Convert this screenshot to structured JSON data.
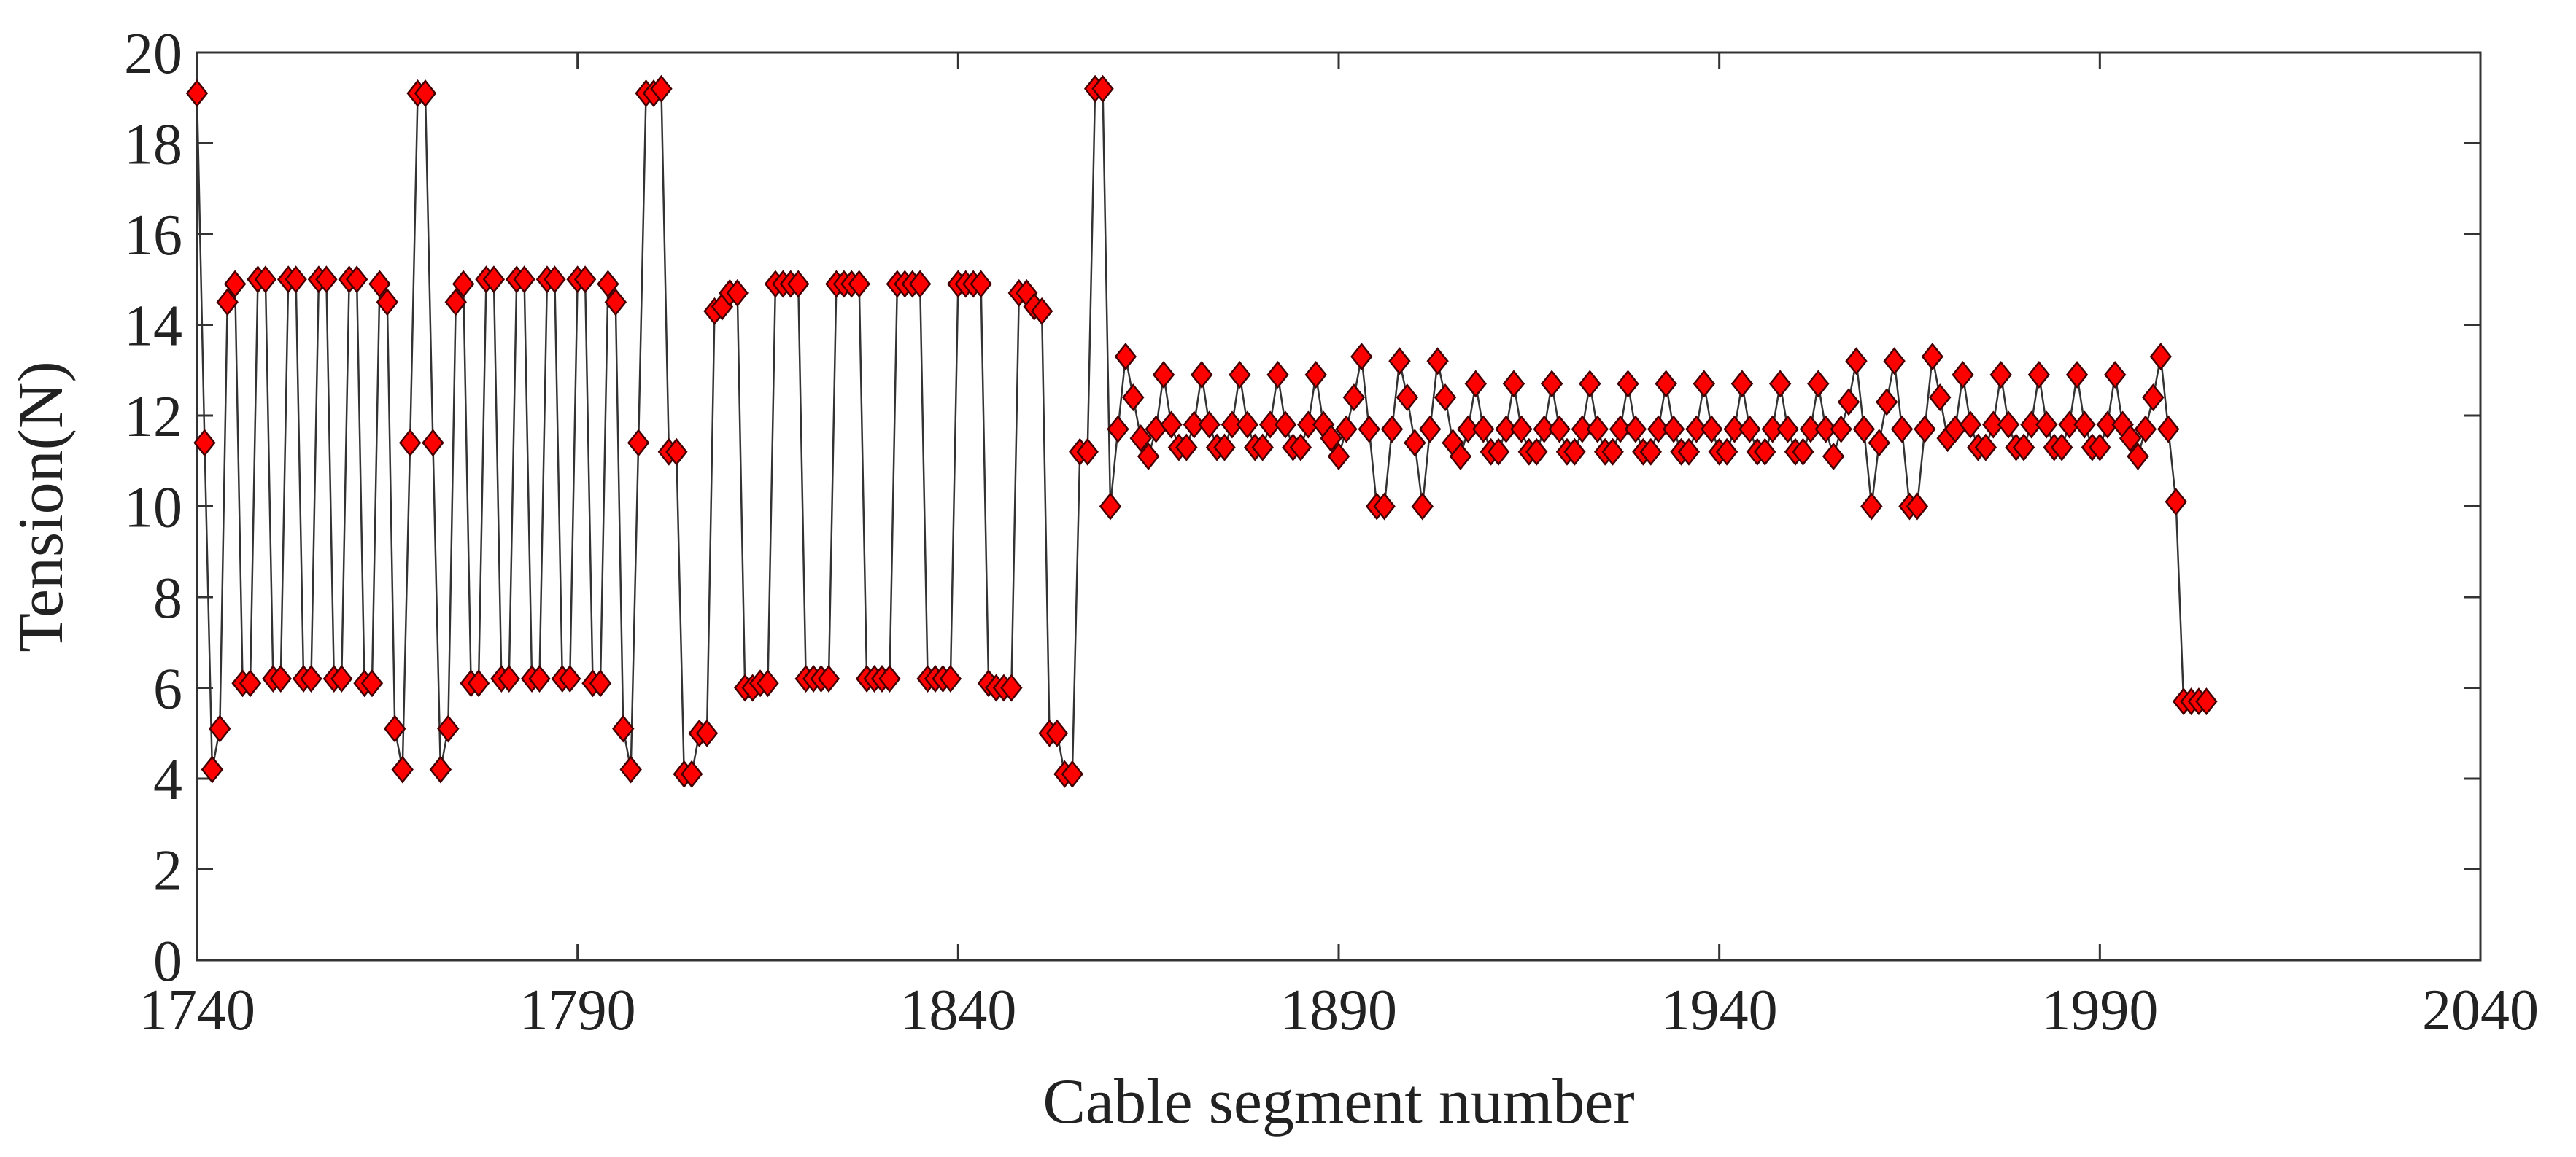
{
  "chart_data": {
    "type": "line",
    "x_label": "Cable segment number",
    "y_label": "Tension(N)",
    "xlim": [
      1740,
      2040
    ],
    "xticks": [
      1740,
      1790,
      1840,
      1890,
      1940,
      1990,
      2040
    ],
    "ylim": [
      0,
      20
    ],
    "yticks": [
      0,
      2,
      4,
      6,
      8,
      10,
      12,
      14,
      16,
      18,
      20
    ],
    "color": "#ff0000",
    "line_color": "#333333",
    "grid": false,
    "x": [
      1740,
      1741,
      1742,
      1743,
      1744,
      1745,
      1746,
      1747,
      1748,
      1749,
      1750,
      1751,
      1752,
      1753,
      1754,
      1755,
      1756,
      1757,
      1758,
      1759,
      1760,
      1761,
      1762,
      1763,
      1764,
      1765,
      1766,
      1767,
      1768,
      1769,
      1770,
      1771,
      1772,
      1773,
      1774,
      1775,
      1776,
      1777,
      1778,
      1779,
      1780,
      1781,
      1782,
      1783,
      1784,
      1785,
      1786,
      1787,
      1788,
      1789,
      1790,
      1791,
      1792,
      1793,
      1794,
      1795,
      1796,
      1797,
      1798,
      1799,
      1800,
      1801,
      1802,
      1803,
      1804,
      1805,
      1806,
      1807,
      1808,
      1809,
      1810,
      1811,
      1812,
      1813,
      1814,
      1815,
      1816,
      1817,
      1818,
      1819,
      1820,
      1821,
      1822,
      1823,
      1824,
      1825,
      1826,
      1827,
      1828,
      1829,
      1830,
      1831,
      1832,
      1833,
      1834,
      1835,
      1836,
      1837,
      1838,
      1839,
      1840,
      1841,
      1842,
      1843,
      1844,
      1845,
      1846,
      1847,
      1848,
      1849,
      1850,
      1851,
      1852,
      1853,
      1854,
      1855,
      1856,
      1857,
      1858,
      1859,
      1860,
      1861,
      1862,
      1863,
      1864,
      1865,
      1866,
      1867,
      1868,
      1869,
      1870,
      1871,
      1872,
      1873,
      1874,
      1875,
      1876,
      1877,
      1878,
      1879,
      1880,
      1881,
      1882,
      1883,
      1884,
      1885,
      1886,
      1887,
      1888,
      1889,
      1890,
      1891,
      1892,
      1893,
      1894,
      1895,
      1896,
      1897,
      1898,
      1899,
      1900,
      1901,
      1902,
      1903,
      1904,
      1905,
      1906,
      1907,
      1908,
      1909,
      1910,
      1911,
      1912,
      1913,
      1914,
      1915,
      1916,
      1917,
      1918,
      1919,
      1920,
      1921,
      1922,
      1923,
      1924,
      1925,
      1926,
      1927,
      1928,
      1929,
      1930,
      1931,
      1932,
      1933,
      1934,
      1935,
      1936,
      1937,
      1938,
      1939,
      1940,
      1941,
      1942,
      1943,
      1944,
      1945,
      1946,
      1947,
      1948,
      1949,
      1950,
      1951,
      1952,
      1953,
      1954,
      1955,
      1956,
      1957,
      1958,
      1959,
      1960,
      1961,
      1962,
      1963,
      1964,
      1965,
      1966,
      1967,
      1968,
      1969,
      1970,
      1971,
      1972,
      1973,
      1974,
      1975,
      1976,
      1977,
      1978,
      1979,
      1980,
      1981,
      1982,
      1983,
      1984,
      1985,
      1986,
      1987,
      1988,
      1989,
      1990,
      1991,
      1992,
      1993,
      1994,
      1995,
      1996,
      1997,
      1998,
      1999,
      2000,
      2001,
      2002,
      2003,
      2004
    ],
    "values": [
      19.1,
      11.4,
      4.2,
      5.1,
      14.5,
      14.9,
      6.1,
      6.1,
      15.0,
      15.0,
      6.2,
      6.2,
      15.0,
      15.0,
      6.2,
      6.2,
      15.0,
      15.0,
      6.2,
      6.2,
      15.0,
      15.0,
      6.1,
      6.1,
      14.9,
      14.5,
      5.1,
      4.2,
      11.4,
      19.1,
      19.1,
      11.4,
      4.2,
      5.1,
      14.5,
      14.9,
      6.1,
      6.1,
      15.0,
      15.0,
      6.2,
      6.2,
      15.0,
      15.0,
      6.2,
      6.2,
      15.0,
      15.0,
      6.2,
      6.2,
      15.0,
      15.0,
      6.1,
      6.1,
      14.9,
      14.5,
      5.1,
      4.2,
      11.4,
      19.1,
      19.1,
      19.2,
      11.2,
      11.2,
      4.1,
      4.1,
      5.0,
      5.0,
      14.3,
      14.4,
      14.7,
      14.7,
      6.0,
      6.0,
      6.1,
      6.1,
      14.9,
      14.9,
      14.9,
      14.9,
      6.2,
      6.2,
      6.2,
      6.2,
      14.9,
      14.9,
      14.9,
      14.9,
      6.2,
      6.2,
      6.2,
      6.2,
      14.9,
      14.9,
      14.9,
      14.9,
      6.2,
      6.2,
      6.2,
      6.2,
      14.9,
      14.9,
      14.9,
      14.9,
      6.1,
      6.0,
      6.0,
      6.0,
      14.7,
      14.7,
      14.4,
      14.3,
      5.0,
      5.0,
      4.1,
      4.1,
      11.2,
      11.2,
      19.2,
      19.2,
      10.0,
      11.7,
      13.3,
      12.4,
      11.5,
      11.1,
      11.7,
      12.9,
      11.8,
      11.3,
      11.3,
      11.8,
      12.9,
      11.8,
      11.3,
      11.3,
      11.8,
      12.9,
      11.8,
      11.3,
      11.3,
      11.8,
      12.9,
      11.8,
      11.3,
      11.3,
      11.8,
      12.9,
      11.8,
      11.5,
      11.1,
      11.7,
      12.4,
      13.3,
      11.7,
      10.0,
      10.0,
      11.7,
      13.2,
      12.4,
      11.4,
      10.0,
      11.7,
      13.2,
      12.4,
      11.4,
      11.1,
      11.7,
      12.7,
      11.7,
      11.2,
      11.2,
      11.7,
      12.7,
      11.7,
      11.2,
      11.2,
      11.7,
      12.7,
      11.7,
      11.2,
      11.2,
      11.7,
      12.7,
      11.7,
      11.2,
      11.2,
      11.7,
      12.7,
      11.7,
      11.2,
      11.2,
      11.7,
      12.7,
      11.7,
      11.2,
      11.2,
      11.7,
      12.7,
      11.7,
      11.2,
      11.2,
      11.7,
      12.7,
      11.7,
      11.2,
      11.2,
      11.7,
      12.7,
      11.7,
      11.2,
      11.2,
      11.7,
      12.7,
      11.7,
      11.1,
      11.7,
      12.3,
      13.2,
      11.7,
      10.0,
      11.4,
      12.3,
      13.2,
      11.7,
      10.0,
      10.0,
      11.7,
      13.3,
      12.4,
      11.5,
      11.7,
      12.9,
      11.8,
      11.3,
      11.3,
      11.8,
      12.9,
      11.8,
      11.3,
      11.3,
      11.8,
      12.9,
      11.8,
      11.3,
      11.3,
      11.8,
      12.9,
      11.8,
      11.3,
      11.3,
      11.8,
      12.9,
      11.8,
      11.5,
      11.1,
      11.7,
      12.4,
      13.3,
      11.7,
      10.1,
      5.7,
      5.7,
      5.7,
      5.7
    ]
  }
}
